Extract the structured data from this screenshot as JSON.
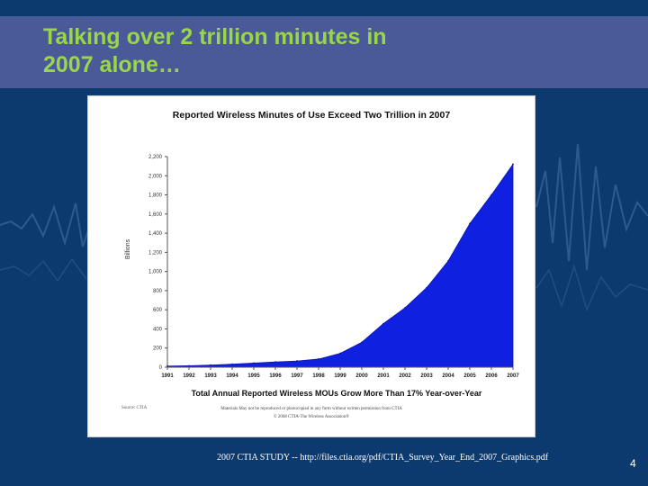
{
  "slide": {
    "title_line1": "Talking over 2 trillion minutes in",
    "title_line2": "2007 alone…",
    "source": "2007 CTIA STUDY -- http://files.ctia.org/pdf/CTIA_Survey_Year_End_2007_Graphics.pdf",
    "page_number": "4"
  },
  "colors": {
    "background": "#0d3a6e",
    "title_band": "#4a5a99",
    "title_text": "#9ad64a",
    "area_fill": "#1020e0"
  },
  "chart_data": {
    "type": "area",
    "title": "Reported Wireless Minutes of Use Exceed Two Trillion in 2007",
    "subtitle": "Total Annual Reported Wireless MOUs Grow More Than 17% Year-over-Year",
    "ylabel": "Billions",
    "xlabel": "",
    "x": [
      "1991",
      "1992",
      "1993",
      "1994",
      "1995",
      "1996",
      "1997",
      "1998",
      "1999",
      "2000",
      "2001",
      "2002",
      "2003",
      "2004",
      "2005",
      "2006",
      "2007"
    ],
    "series": [
      {
        "values": [
          12,
          15,
          22,
          32,
          43,
          55,
          65,
          85,
          145,
          260,
          455,
          620,
          830,
          1110,
          1500,
          1800,
          2120
        ]
      }
    ],
    "ylim": [
      0,
      2200
    ],
    "yticks": [
      0,
      200,
      400,
      600,
      800,
      1000,
      1200,
      1400,
      1600,
      1800,
      2000,
      2200
    ],
    "ytick_labels": [
      "0",
      "200",
      "400",
      "600",
      "800",
      "1,000",
      "1,200",
      "1,400",
      "1,600",
      "1,800",
      "2,000",
      "2,200"
    ],
    "grid": false,
    "legend": "none",
    "source_note": "Source: CTIA",
    "permission_note_line1": "Materials May not be reproduced or photocopied in any form without written permission from CTIA",
    "permission_note_line2": "© 2008 CTIA-The Wireless Association®"
  }
}
